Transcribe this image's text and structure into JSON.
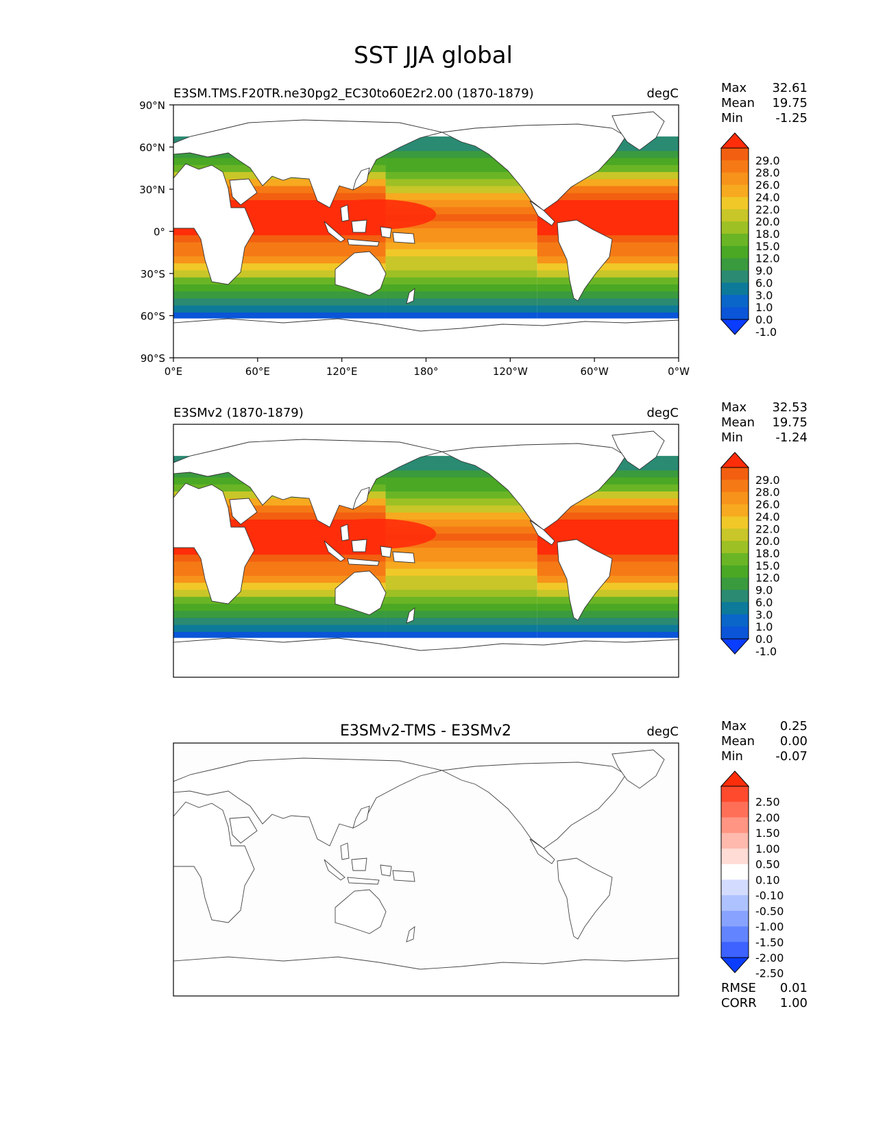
{
  "title": "SST JJA global",
  "axes": {
    "lat_ticks": [
      "90°N",
      "60°N",
      "30°N",
      "0°",
      "30°S",
      "60°S",
      "90°S"
    ],
    "lon_ticks": [
      "0°E",
      "60°E",
      "120°E",
      "180°",
      "120°W",
      "60°W",
      "0°W"
    ]
  },
  "panels": [
    {
      "id": "test",
      "title": "E3SM.TMS.F20TR.ne30pg2_EC30to60E2r2.00 (1870-1879)",
      "units": "degC",
      "stats": [
        [
          "Max",
          "32.61"
        ],
        [
          "Mean",
          "19.75"
        ],
        [
          "Min",
          "-1.25"
        ]
      ],
      "colorbar_labels": [
        "29.0",
        "28.0",
        "26.0",
        "24.0",
        "22.0",
        "20.0",
        "18.0",
        "15.0",
        "12.0",
        "9.0",
        "6.0",
        "3.0",
        "1.0",
        "0.0",
        "-1.0"
      ]
    },
    {
      "id": "ref",
      "title": "E3SMv2 (1870-1879)",
      "units": "degC",
      "stats": [
        [
          "Max",
          "32.53"
        ],
        [
          "Mean",
          "19.75"
        ],
        [
          "Min",
          "-1.24"
        ]
      ],
      "colorbar_labels": [
        "29.0",
        "28.0",
        "26.0",
        "24.0",
        "22.0",
        "20.0",
        "18.0",
        "15.0",
        "12.0",
        "9.0",
        "6.0",
        "3.0",
        "1.0",
        "0.0",
        "-1.0"
      ]
    },
    {
      "id": "diff",
      "title": "E3SMv2-TMS - E3SMv2",
      "units": "degC",
      "stats": [
        [
          "Max",
          "0.25"
        ],
        [
          "Mean",
          "0.00"
        ],
        [
          "Min",
          "-0.07"
        ]
      ],
      "colorbar_labels": [
        "2.50",
        "2.00",
        "1.50",
        "1.00",
        "0.50",
        "0.10",
        "-0.10",
        "-0.50",
        "-1.00",
        "-1.50",
        "-2.00",
        "-2.50"
      ],
      "metrics": [
        [
          "RMSE",
          "0.01"
        ],
        [
          "CORR",
          "1.00"
        ]
      ]
    }
  ],
  "chart_data": {
    "type": "heatmap",
    "variable": "SST",
    "season": "JJA",
    "region": "global",
    "units": "degC",
    "xlim": [
      0,
      360
    ],
    "ylim": [
      -90,
      90
    ],
    "sst_levels": [
      -1.0,
      0.0,
      1.0,
      3.0,
      6.0,
      9.0,
      12.0,
      15.0,
      18.0,
      20.0,
      22.0,
      24.0,
      26.0,
      28.0,
      29.0
    ],
    "diff_levels": [
      -2.5,
      -2.0,
      -1.5,
      -1.0,
      -0.5,
      -0.1,
      0.1,
      0.5,
      1.0,
      1.5,
      2.0,
      2.5
    ],
    "sst_colors": [
      "#0a3dff",
      "#0a55d8",
      "#0a66c8",
      "#0d7a9a",
      "#2a8a72",
      "#3a9a3e",
      "#4aa825",
      "#6ab525",
      "#9dc025",
      "#c8c628",
      "#f0c828",
      "#f7a91f",
      "#f7921a",
      "#f57a15",
      "#f35f10",
      "#ff2d0a"
    ],
    "diff_colors": [
      "#0a3dff",
      "#3d62ff",
      "#6284ff",
      "#87a3ff",
      "#aec2ff",
      "#d3dcff",
      "#ffffff",
      "#ffdcd5",
      "#ffb9ad",
      "#ff9582",
      "#ff6f58",
      "#ff4a2e",
      "#ff2d0a"
    ],
    "sst_profile": {
      "lat": [
        -60,
        -55,
        -50,
        -45,
        -40,
        -35,
        -30,
        -25,
        -20,
        -15,
        -10,
        -5,
        0,
        5,
        10,
        15,
        20,
        25,
        30,
        35,
        40,
        45,
        50,
        55,
        60,
        65
      ],
      "west_pacific": [
        -1.0,
        1.0,
        3.0,
        6.0,
        10.0,
        14.0,
        18.0,
        21.0,
        24.0,
        26.0,
        27.5,
        28.5,
        29.0,
        29.3,
        29.5,
        29.5,
        29.3,
        28.5,
        26.5,
        23.0,
        19.0,
        14.0,
        10.0,
        7.0,
        5.0,
        4.0
      ],
      "east_pacific": [
        -1.0,
        1.0,
        3.0,
        6.0,
        10.0,
        13.0,
        16.0,
        18.0,
        19.5,
        21.0,
        22.5,
        24.0,
        25.0,
        27.0,
        28.0,
        27.5,
        25.0,
        22.0,
        19.0,
        17.0,
        14.0,
        11.0,
        9.0,
        7.0,
        5.0,
        4.0
      ]
    }
  }
}
